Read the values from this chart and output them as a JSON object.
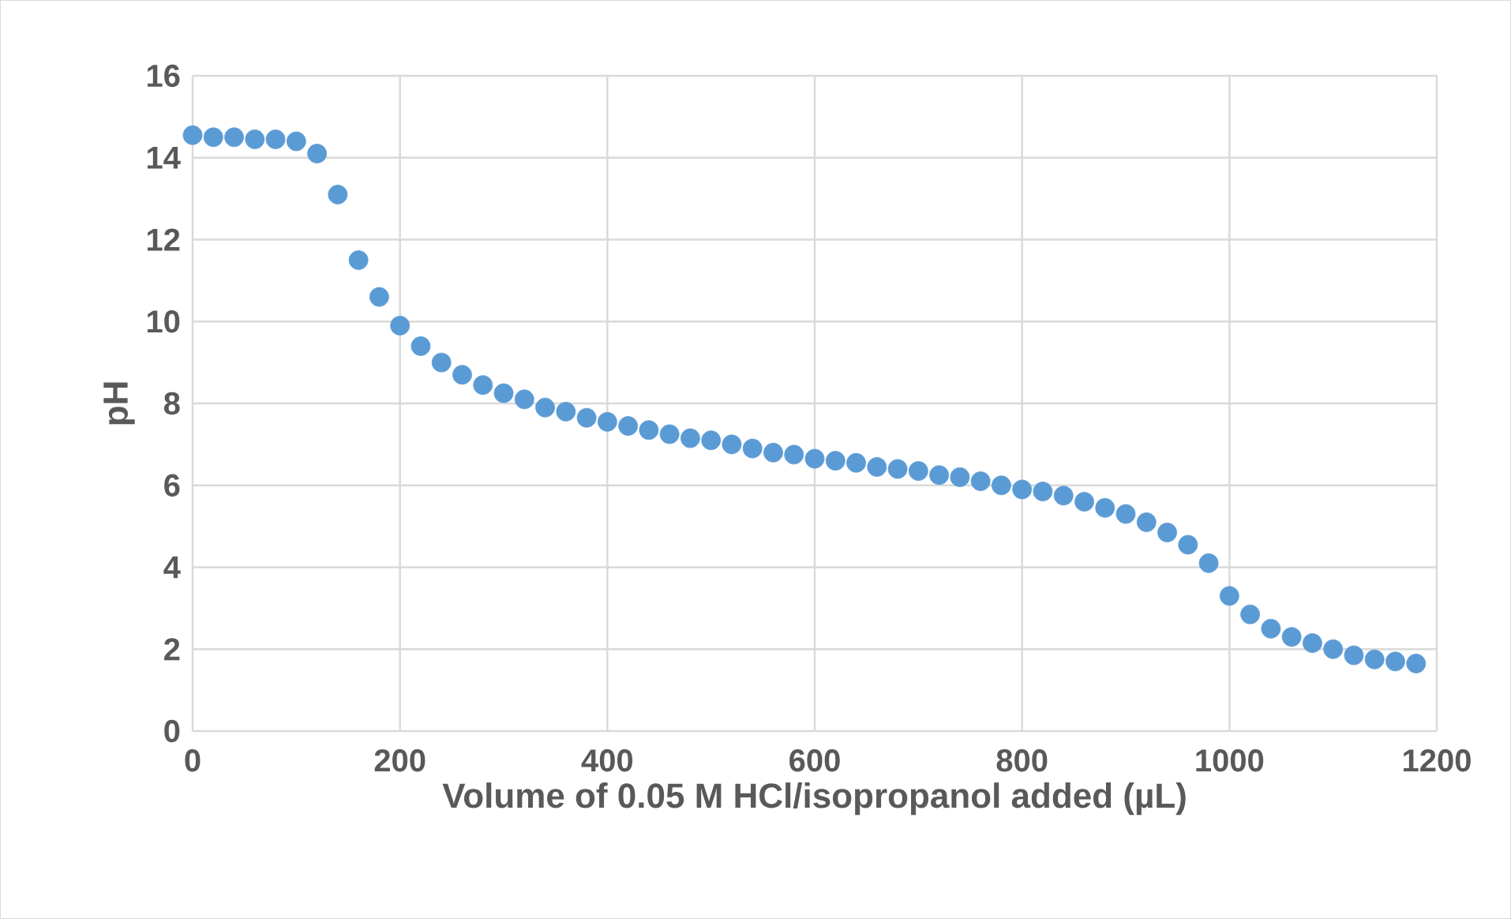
{
  "chart_data": {
    "type": "scatter",
    "xlabel": "Volume of 0.05 M HCl/isopropanol added (µL)",
    "ylabel": "pH",
    "x": [
      0,
      20,
      40,
      60,
      80,
      100,
      120,
      140,
      160,
      180,
      200,
      220,
      240,
      260,
      280,
      300,
      320,
      340,
      360,
      380,
      400,
      420,
      440,
      460,
      480,
      500,
      520,
      540,
      560,
      580,
      600,
      620,
      640,
      660,
      680,
      700,
      720,
      740,
      760,
      780,
      800,
      820,
      840,
      860,
      880,
      900,
      920,
      940,
      960,
      980,
      1000,
      1020,
      1040,
      1060,
      1080,
      1100,
      1120,
      1140,
      1160,
      1180
    ],
    "series": [
      {
        "color": "#5b9bd5",
        "values": [
          14.55,
          14.5,
          14.5,
          14.45,
          14.45,
          14.4,
          14.1,
          13.1,
          11.5,
          10.6,
          9.9,
          9.4,
          9.0,
          8.7,
          8.45,
          8.25,
          8.1,
          7.9,
          7.8,
          7.65,
          7.55,
          7.45,
          7.35,
          7.25,
          7.15,
          7.1,
          7.0,
          6.9,
          6.8,
          6.75,
          6.65,
          6.6,
          6.55,
          6.45,
          6.4,
          6.35,
          6.25,
          6.2,
          6.1,
          6.0,
          5.9,
          5.85,
          5.75,
          5.6,
          5.45,
          5.3,
          5.1,
          4.85,
          4.55,
          4.1,
          3.3,
          2.85,
          2.5,
          2.3,
          2.15,
          2.0,
          1.85,
          1.75,
          1.7,
          1.65
        ]
      }
    ],
    "xlim": [
      0,
      1200
    ],
    "xticks": [
      0,
      200,
      400,
      600,
      800,
      1000,
      1200
    ],
    "ylim": [
      0,
      16
    ],
    "yticks": [
      0,
      2,
      4,
      6,
      8,
      10,
      12,
      14,
      16
    ],
    "grid": true,
    "marker": "circle"
  }
}
